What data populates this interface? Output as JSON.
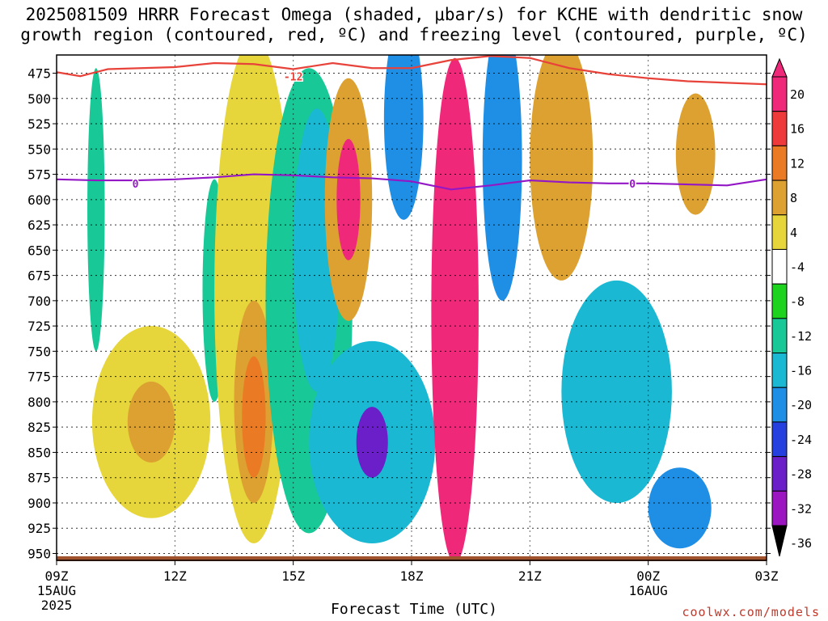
{
  "chart_data": {
    "type": "heatmap",
    "title_line1": "2025081509 HRRR Forecast Omega (shaded, μbar/s) for KCHE with dendritic snow",
    "title_line2": "growth region (contoured, red, ºC) and freezing level (contoured, purple, ºC)",
    "xlabel": "Forecast Time (UTC)",
    "credit": "coolwx.com/models",
    "y_pressure_levels": [
      475,
      500,
      525,
      550,
      575,
      600,
      625,
      650,
      675,
      700,
      725,
      750,
      775,
      800,
      825,
      850,
      875,
      900,
      925,
      950
    ],
    "x_ticks": [
      {
        "hour": 0,
        "label": "09Z",
        "sub1": "15AUG",
        "sub2": "2025"
      },
      {
        "hour": 3,
        "label": "12Z",
        "sub1": "",
        "sub2": ""
      },
      {
        "hour": 6,
        "label": "15Z",
        "sub1": "",
        "sub2": ""
      },
      {
        "hour": 9,
        "label": "18Z",
        "sub1": "",
        "sub2": ""
      },
      {
        "hour": 12,
        "label": "21Z",
        "sub1": "",
        "sub2": ""
      },
      {
        "hour": 15,
        "label": "00Z",
        "sub1": "16AUG",
        "sub2": ""
      },
      {
        "hour": 18,
        "label": "03Z",
        "sub1": "",
        "sub2": ""
      }
    ],
    "colorbar": {
      "levels": [
        20,
        16,
        12,
        8,
        4,
        -4,
        -8,
        -12,
        -16,
        -20,
        -24,
        -28,
        -32,
        -36
      ],
      "colors": [
        "#f0287a",
        "#ee3a3a",
        "#ea7a24",
        "#dca131",
        "#e6d53b",
        "#ffffff",
        "#1ed31e",
        "#18c896",
        "#1ab8d2",
        "#1f8fe6",
        "#2640e0",
        "#6a1fc8",
        "#9b16c0",
        "#a9a9a9",
        "#000000"
      ]
    },
    "contours": [
      {
        "label": "-12",
        "color": "#e8433b",
        "points": [
          [
            0,
            474
          ],
          [
            0.6,
            478
          ],
          [
            1.3,
            471
          ],
          [
            3,
            469
          ],
          [
            4,
            465
          ],
          [
            5,
            466
          ],
          [
            6,
            471
          ],
          [
            7,
            465
          ],
          [
            8,
            470
          ],
          [
            9,
            470
          ],
          [
            10,
            462
          ],
          [
            11,
            458
          ],
          [
            12,
            460
          ],
          [
            13,
            470
          ],
          [
            14,
            476
          ],
          [
            15,
            480
          ],
          [
            16,
            483
          ],
          [
            18,
            486
          ]
        ]
      },
      {
        "label": "0",
        "color": "#9417c6",
        "points": [
          [
            0,
            580
          ],
          [
            1,
            581
          ],
          [
            2,
            581
          ],
          [
            3,
            580
          ],
          [
            4,
            578
          ],
          [
            5,
            575
          ],
          [
            6,
            576
          ],
          [
            7,
            578
          ],
          [
            8,
            579
          ],
          [
            9,
            582
          ],
          [
            10,
            590
          ],
          [
            11,
            586
          ],
          [
            12,
            581
          ],
          [
            13,
            583
          ],
          [
            14,
            584
          ],
          [
            15,
            584
          ],
          [
            16,
            585
          ],
          [
            17,
            586
          ],
          [
            18,
            580
          ]
        ]
      }
    ],
    "shaded_features": [
      {
        "value": -8,
        "hour": 1.0,
        "p": 610,
        "hw": 0.22,
        "hp": 140
      },
      {
        "value": 4,
        "hour": 2.4,
        "p": 820,
        "hw": 1.5,
        "hp": 95
      },
      {
        "value": 8,
        "hour": 2.4,
        "p": 820,
        "hw": 0.6,
        "hp": 40
      },
      {
        "value": -8,
        "hour": 4.0,
        "p": 690,
        "hw": 0.3,
        "hp": 110
      },
      {
        "value": 4,
        "hour": 5.0,
        "p": 690,
        "hw": 1.0,
        "hp": 250
      },
      {
        "value": 8,
        "hour": 5.0,
        "p": 800,
        "hw": 0.5,
        "hp": 100
      },
      {
        "value": 12,
        "hour": 5.0,
        "p": 815,
        "hw": 0.3,
        "hp": 60
      },
      {
        "value": -8,
        "hour": 6.4,
        "p": 700,
        "hw": 1.1,
        "hp": 230
      },
      {
        "value": -12,
        "hour": 6.6,
        "p": 650,
        "hw": 0.6,
        "hp": 140
      },
      {
        "value": 8,
        "hour": 7.4,
        "p": 600,
        "hw": 0.6,
        "hp": 120
      },
      {
        "value": 20,
        "hour": 7.4,
        "p": 600,
        "hw": 0.3,
        "hp": 60
      },
      {
        "value": -12,
        "hour": 8.0,
        "p": 840,
        "hw": 1.6,
        "hp": 100
      },
      {
        "value": -24,
        "hour": 8.0,
        "p": 840,
        "hw": 0.4,
        "hp": 35
      },
      {
        "value": -16,
        "hour": 8.8,
        "p": 520,
        "hw": 0.5,
        "hp": 100
      },
      {
        "value": 20,
        "hour": 10.1,
        "p": 710,
        "hw": 0.6,
        "hp": 250
      },
      {
        "value": -16,
        "hour": 11.3,
        "p": 560,
        "hw": 0.5,
        "hp": 140
      },
      {
        "value": 8,
        "hour": 12.8,
        "p": 560,
        "hw": 0.8,
        "hp": 120
      },
      {
        "value": -12,
        "hour": 14.2,
        "p": 790,
        "hw": 1.4,
        "hp": 110
      },
      {
        "value": -16,
        "hour": 15.8,
        "p": 905,
        "hw": 0.8,
        "hp": 40
      },
      {
        "value": 8,
        "hour": 16.2,
        "p": 555,
        "hw": 0.5,
        "hp": 60
      }
    ]
  }
}
